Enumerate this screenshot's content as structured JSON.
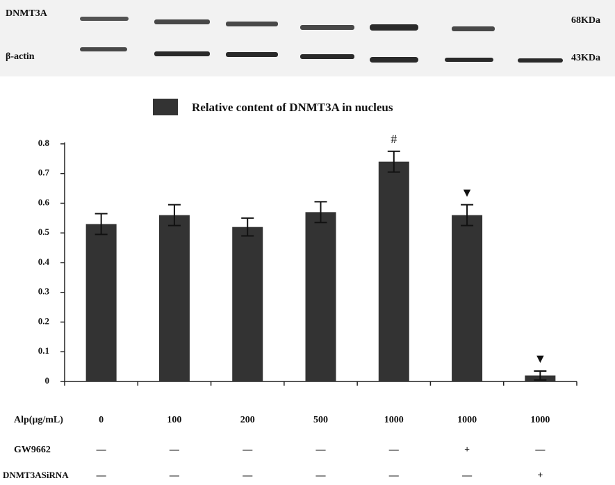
{
  "chart_data": {
    "type": "bar",
    "blot": {
      "rows": [
        "DNMT3A",
        "β-actin"
      ],
      "sizes": [
        "68KDa",
        "43KDa"
      ]
    },
    "categories": [
      "0",
      "100",
      "200",
      "500",
      "1000",
      "1000",
      "1000"
    ],
    "x_label": "Alp(μg/mL)",
    "series": [
      {
        "name": "Relative content of DNMT3A  in nucleus",
        "color": "#333333",
        "values": [
          0.53,
          0.56,
          0.52,
          0.57,
          0.74,
          0.56,
          0.02
        ],
        "errors": [
          0.035,
          0.035,
          0.03,
          0.035,
          0.035,
          0.035,
          0.015
        ]
      }
    ],
    "markers": [
      null,
      null,
      null,
      null,
      "#",
      "▼",
      "▼"
    ],
    "treatment_rows": [
      {
        "name": "GW9662",
        "values": [
          "—",
          "—",
          "—",
          "—",
          "—",
          "+",
          "—"
        ]
      },
      {
        "name": "DNMT3ASiRNA",
        "values": [
          "—",
          "—",
          "—",
          "—",
          "—",
          "—",
          "+"
        ]
      }
    ],
    "ylim": [
      0,
      0.8
    ],
    "yticks": [
      0,
      0.1,
      0.2,
      0.3,
      0.4,
      0.5,
      0.6,
      0.7,
      0.8
    ],
    "grid": false
  }
}
